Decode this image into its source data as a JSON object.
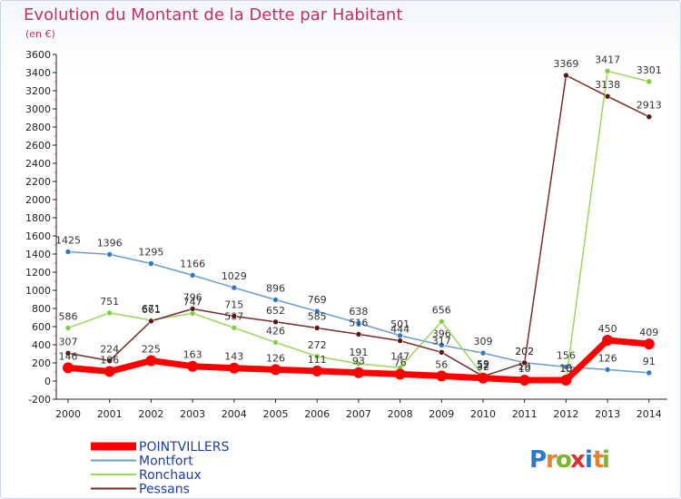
{
  "header": {
    "title": "Evolution du Montant de la Dette par Habitant",
    "unit": "(en €)"
  },
  "brand": {
    "letters": [
      "P",
      "r",
      "o",
      "x",
      "i",
      "t",
      "i"
    ],
    "colors": [
      "#2b78c8",
      "#e8812a",
      "#7ab829",
      "#e0302b",
      "#2b78c8",
      "#e8812a",
      "#7ab829"
    ]
  },
  "chart_data": {
    "type": "line",
    "title": "Evolution du Montant de la Dette par Habitant",
    "ylabel": "(en €)",
    "xlabel": "",
    "x": [
      "2000",
      "2001",
      "2002",
      "2003",
      "2004",
      "2005",
      "2006",
      "2007",
      "2008",
      "2009",
      "2010",
      "2011",
      "2012",
      "2013",
      "2014"
    ],
    "ylim": [
      -200,
      3600
    ],
    "yticks": [
      -200,
      0,
      200,
      400,
      600,
      800,
      1000,
      1200,
      1400,
      1600,
      1800,
      2000,
      2200,
      2400,
      2600,
      2800,
      3000,
      3200,
      3400,
      3600
    ],
    "grid": false,
    "legend": "bottom-left",
    "series": [
      {
        "name": "Montfort",
        "color": "#6b9bd2",
        "marker": "#2f78c4",
        "width": 1.5,
        "values": [
          1425,
          1396,
          1295,
          1166,
          1029,
          896,
          769,
          638,
          501,
          396,
          309,
          202,
          156,
          126,
          91
        ]
      },
      {
        "name": "Ronchaux",
        "color": "#9bd65a",
        "marker": "#7ccf3a",
        "width": 1.5,
        "values": [
          586,
          751,
          671,
          747,
          587,
          426,
          272,
          191,
          147,
          656,
          59,
          29,
          13,
          3417,
          3301
        ]
      },
      {
        "name": "Pessans",
        "color": "#7a2a2a",
        "marker": "#5a1616",
        "width": 1.5,
        "values": [
          307,
          224,
          661,
          796,
          715,
          652,
          585,
          516,
          444,
          317,
          52,
          202,
          3369,
          3138,
          2913
        ]
      },
      {
        "name": "POINTVILLERS",
        "color": "#ff0000",
        "marker": "#ff0000",
        "width": 7,
        "values": [
          146,
          106,
          225,
          163,
          143,
          126,
          111,
          93,
          76,
          56,
          32,
          10,
          10,
          450,
          409
        ]
      }
    ],
    "legend_order": [
      "POINTVILLERS",
      "Montfort",
      "Ronchaux",
      "Pessans"
    ]
  }
}
